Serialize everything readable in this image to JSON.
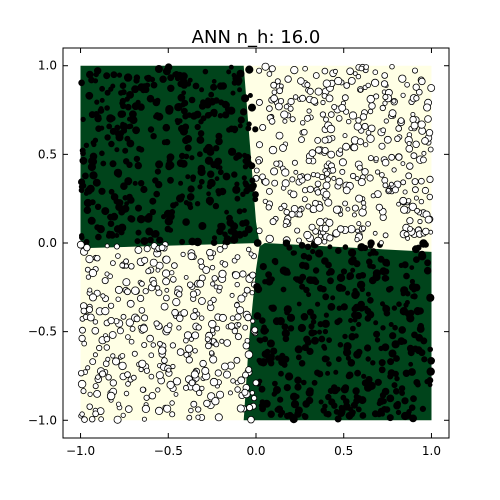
{
  "chart_data": {
    "type": "scatter",
    "title": "ANN n_h: 16.0",
    "xlabel": "",
    "ylabel": "",
    "xlim": [
      -1.1,
      1.1
    ],
    "ylim": [
      -1.1,
      1.1
    ],
    "x_ticks": [
      -1.0,
      -0.5,
      0.0,
      0.5,
      1.0
    ],
    "y_ticks": [
      -1.0,
      -0.5,
      0.0,
      0.5,
      1.0
    ],
    "x_tick_labels": [
      "−1.0",
      "−0.5",
      "0.0",
      "0.5",
      "1.0"
    ],
    "y_tick_labels": [
      "−1.0",
      "−0.5",
      "0.0",
      "0.5",
      "1.0"
    ],
    "grid": false,
    "legend": "none",
    "colors": {
      "class_positive_region": "#00441b",
      "class_negative_region": "#ffffe5",
      "class_positive_marker": "#ffffff",
      "class_negative_marker": "#000000",
      "marker_edge": "#000000"
    },
    "decision_regions": [
      {
        "name": "dark-top-left",
        "class": "positive",
        "polygon": [
          [
            -1.0,
            1.0
          ],
          [
            -0.07,
            1.0
          ],
          [
            -0.04,
            0.62
          ],
          [
            0.0,
            0.12
          ],
          [
            0.02,
            0.0
          ],
          [
            -1.0,
            -0.03
          ]
        ]
      },
      {
        "name": "dark-bottom-right",
        "class": "positive",
        "polygon": [
          [
            0.05,
            0.0
          ],
          [
            1.0,
            -0.05
          ],
          [
            1.0,
            -1.0
          ],
          [
            -0.07,
            -1.0
          ],
          [
            -0.04,
            -0.55
          ],
          [
            0.0,
            -0.15
          ],
          [
            0.02,
            -0.02
          ]
        ]
      }
    ],
    "points": {
      "description_of_source": "uniform samples on [-1,1]^2 labelled by sign(x*y); positive quadrants drawn as white markers, negative as black",
      "count": 1600,
      "x_range": [
        -1.0,
        1.0
      ],
      "y_range": [
        -1.0,
        1.0
      ],
      "rule": "class positive if x*y > 0 else negative"
    }
  }
}
